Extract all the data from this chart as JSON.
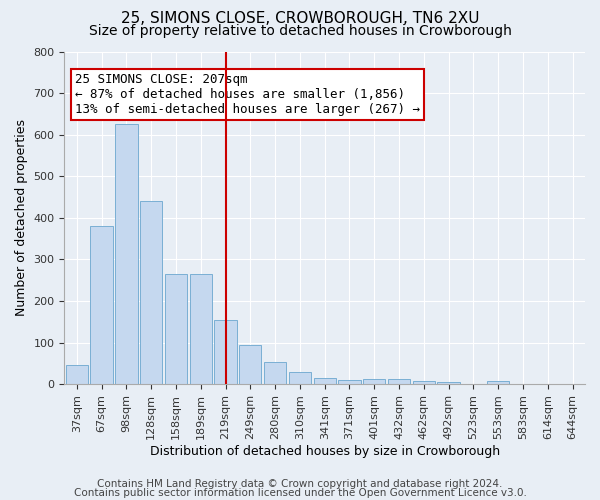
{
  "title": "25, SIMONS CLOSE, CROWBOROUGH, TN6 2XU",
  "subtitle": "Size of property relative to detached houses in Crowborough",
  "xlabel": "Distribution of detached houses by size in Crowborough",
  "ylabel": "Number of detached properties",
  "footer_line1": "Contains HM Land Registry data © Crown copyright and database right 2024.",
  "footer_line2": "Contains public sector information licensed under the Open Government Licence v3.0.",
  "categories": [
    "37sqm",
    "67sqm",
    "98sqm",
    "128sqm",
    "158sqm",
    "189sqm",
    "219sqm",
    "249sqm",
    "280sqm",
    "310sqm",
    "341sqm",
    "371sqm",
    "401sqm",
    "432sqm",
    "462sqm",
    "492sqm",
    "523sqm",
    "553sqm",
    "583sqm",
    "614sqm",
    "644sqm"
  ],
  "values": [
    45,
    380,
    625,
    440,
    265,
    265,
    155,
    95,
    52,
    30,
    15,
    10,
    12,
    12,
    8,
    5,
    0,
    8,
    0,
    0,
    0
  ],
  "bar_color": "#c5d8ef",
  "bar_edge_color": "#7aafd4",
  "vline_x": 6.0,
  "vline_color": "#cc0000",
  "annotation_line1": "25 SIMONS CLOSE: 207sqm",
  "annotation_line2": "← 87% of detached houses are smaller (1,856)",
  "annotation_line3": "13% of semi-detached houses are larger (267) →",
  "annotation_box_color": "#ffffff",
  "annotation_box_edge": "#cc0000",
  "ylim": [
    0,
    800
  ],
  "yticks": [
    0,
    100,
    200,
    300,
    400,
    500,
    600,
    700,
    800
  ],
  "background_color": "#e8eef5",
  "plot_background": "#e8eef5",
  "title_fontsize": 11,
  "subtitle_fontsize": 10,
  "xlabel_fontsize": 9,
  "ylabel_fontsize": 9,
  "tick_fontsize": 8,
  "annotation_fontsize": 9,
  "footer_fontsize": 7.5
}
